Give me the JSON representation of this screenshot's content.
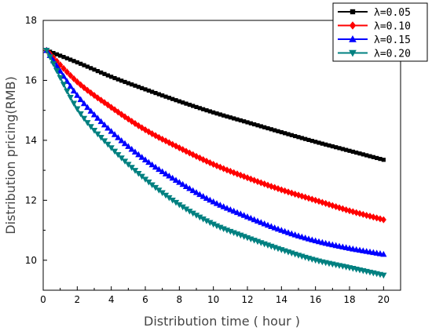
{
  "chart_data": {
    "type": "line",
    "xlabel": "Distribution time ( hour )",
    "ylabel": "Distribution pricing(RMB)",
    "xlim": [
      0,
      21
    ],
    "ylim": [
      9.0,
      18.0
    ],
    "xticks": [
      "0",
      "2",
      "4",
      "6",
      "8",
      "10",
      "12",
      "14",
      "16",
      "18",
      "20"
    ],
    "yticks": [
      "10",
      "12",
      "14",
      "16",
      "18"
    ],
    "grid": false,
    "legend_position": "top-right",
    "x": [
      0.2,
      2,
      4,
      6,
      8,
      10,
      12,
      14,
      16,
      18,
      20
    ],
    "series": [
      {
        "name": "λ=0.05",
        "marker": "square",
        "color": "#000000",
        "values": [
          17.0,
          16.6,
          16.12,
          15.7,
          15.3,
          14.93,
          14.6,
          14.27,
          13.95,
          13.65,
          13.35
        ]
      },
      {
        "name": "λ=0.10",
        "marker": "diamond",
        "color": "#ff0000",
        "values": [
          17.0,
          15.95,
          15.1,
          14.35,
          13.75,
          13.2,
          12.75,
          12.35,
          12.0,
          11.65,
          11.35
        ]
      },
      {
        "name": "λ=0.15",
        "marker": "triangle-up",
        "color": "#0000ff",
        "values": [
          17.0,
          15.5,
          14.3,
          13.35,
          12.6,
          11.95,
          11.45,
          11.0,
          10.65,
          10.4,
          10.2
        ]
      },
      {
        "name": "λ=0.20",
        "marker": "triangle-down",
        "color": "#008080",
        "values": [
          17.0,
          15.05,
          13.75,
          12.7,
          11.85,
          11.2,
          10.75,
          10.35,
          10.0,
          9.75,
          9.5
        ]
      }
    ]
  }
}
